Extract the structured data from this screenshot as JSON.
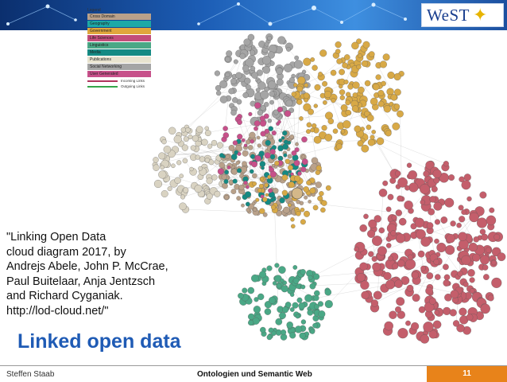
{
  "logo": {
    "text": "WeST"
  },
  "legend": {
    "title": "Legend",
    "categories": [
      {
        "label": "Cross Domain",
        "color": "#b9a18a"
      },
      {
        "label": "Geography",
        "color": "#1da9a7"
      },
      {
        "label": "Government",
        "color": "#e0a73c"
      },
      {
        "label": "Life Sciences",
        "color": "#c24d7a"
      },
      {
        "label": "Linguistics",
        "color": "#4aa886"
      },
      {
        "label": "Media",
        "color": "#158a83"
      },
      {
        "label": "Publications",
        "color": "#e8e3cf"
      },
      {
        "label": "Social Networking",
        "color": "#a5a5a5"
      },
      {
        "label": "User Generated",
        "color": "#c7508a"
      }
    ],
    "links": [
      {
        "label": "Incoming Links",
        "color": "#b0345d"
      },
      {
        "label": "Outgoing Links",
        "color": "#35a64a"
      }
    ]
  },
  "colors": {
    "cross_domain": "#b9a18a",
    "life_sciences": "#c45e6b",
    "government": "#d8a946",
    "social": "#a5a5a5",
    "publications": "#d9d3c2",
    "linguistics": "#4aa886",
    "media": "#158a83",
    "user_generated": "#c7508a",
    "accent_blue": "#1f5bb5",
    "accent_orange": "#e8831a"
  },
  "citation": {
    "lines": [
      "\"Linking Open Data",
      "cloud diagram 2017, by",
      "Andrejs Abele, John P. McCrae,",
      "Paul Buitelaar, Anja Jentzsch",
      "and Richard Cyganiak.",
      "http://lod-cloud.net/\""
    ]
  },
  "slide": {
    "title": "Linked open data"
  },
  "footer": {
    "author": "Steffen Staab",
    "course": "Ontologien und Semantic Web",
    "page": "11"
  }
}
